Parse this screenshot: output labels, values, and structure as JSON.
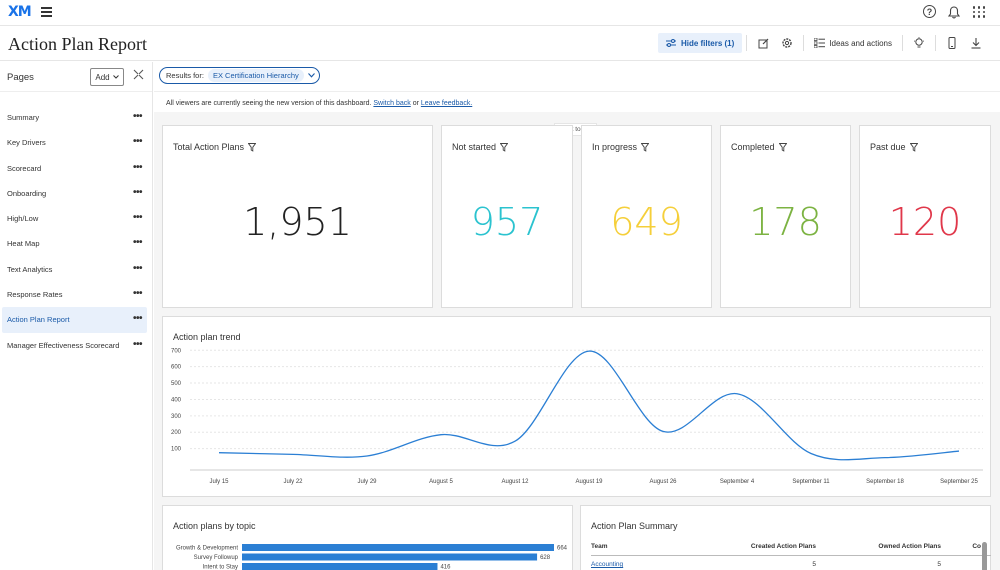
{
  "app": {
    "logo": "XM"
  },
  "header": {
    "title": "Action Plan Report",
    "hide_filters_label": "Hide filters (1)",
    "ideas_label": "Ideas and actions"
  },
  "sidebar": {
    "pages_label": "Pages",
    "add_label": "Add",
    "items": [
      {
        "label": "Summary",
        "active": false
      },
      {
        "label": "Key Drivers",
        "active": false
      },
      {
        "label": "Scorecard",
        "active": false
      },
      {
        "label": "Onboarding",
        "active": false
      },
      {
        "label": "High/Low",
        "active": false
      },
      {
        "label": "Heat Map",
        "active": false
      },
      {
        "label": "Text Analytics",
        "active": false
      },
      {
        "label": "Response Rates",
        "active": false
      },
      {
        "label": "Action Plan Report",
        "active": true
      },
      {
        "label": "Manager Effectiveness Scorecard",
        "active": false
      }
    ]
  },
  "filter": {
    "results_label": "Results for:",
    "results_value": "EX Certification Hierarchy"
  },
  "notice": {
    "text": "All viewers are currently seeing the new version of this dashboard.",
    "switch_back": "Switch back",
    "or": "or",
    "leave_feedback": "Leave feedback.",
    "back_to_top": "Back to top"
  },
  "kpis": [
    {
      "title": "Total Action Plans",
      "value": "1,951",
      "color": "#222222"
    },
    {
      "title": "Not started",
      "value": "957",
      "color": "#2bc3cf"
    },
    {
      "title": "In progress",
      "value": "649",
      "color": "#f5cf3a"
    },
    {
      "title": "Completed",
      "value": "178",
      "color": "#7cb342"
    },
    {
      "title": "Past due",
      "value": "120",
      "color": "#e0374a"
    }
  ],
  "trend": {
    "title": "Action plan trend",
    "chart_data": {
      "type": "line",
      "x": [
        "July 15",
        "July 22",
        "July 29",
        "August 5",
        "August 12",
        "August 19",
        "August 26",
        "September 4",
        "September 11",
        "September 18",
        "September 25"
      ],
      "series": [
        {
          "values": [
            75,
            65,
            55,
            185,
            145,
            695,
            205,
            435,
            70,
            45,
            85
          ]
        }
      ],
      "yticks": [
        100,
        200,
        300,
        400,
        500,
        600,
        700
      ],
      "ylim": [
        0,
        720
      ],
      "color": "#2b7fd4"
    }
  },
  "topics": {
    "title": "Action plans by topic",
    "chart_data": {
      "type": "bar",
      "categories": [
        "Growth & Development",
        "Survey Followup",
        "Intent to Stay"
      ],
      "values": [
        664,
        628,
        416
      ],
      "color": "#2b7fd4"
    }
  },
  "summary": {
    "title": "Action Plan Summary",
    "columns": [
      "Team",
      "Created Action Plans",
      "Owned Action Plans",
      "Co"
    ],
    "rows": [
      [
        "Accounting",
        "5",
        "5",
        ""
      ]
    ]
  }
}
